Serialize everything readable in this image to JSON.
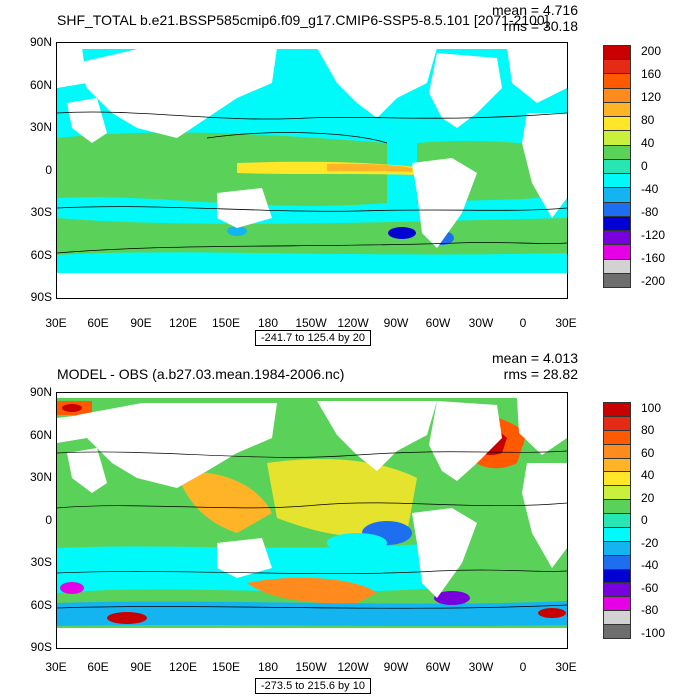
{
  "panels": [
    {
      "title": "SHF_TOTAL b.e21.BSSP585cmip6.f09_g17.CMIP6-SSP5-8.5.101 [2071-2100]",
      "mean": "mean = 4.716",
      "rms": "rms = 30.18",
      "range": "-241.7 to 125.4 by 20",
      "colorbar_labels": [
        "200",
        "160",
        "120",
        "80",
        "40",
        "0",
        "-40",
        "-80",
        "-120",
        "-160",
        "-200"
      ],
      "colors": [
        "#c80000",
        "#e52b16",
        "#ff5a00",
        "#ff8a1e",
        "#ffb428",
        "#ffe628",
        "#c8f03c",
        "#5ad25a",
        "#28e6b4",
        "#00fafa",
        "#14b4f0",
        "#1e6ef0",
        "#0000d2",
        "#7800dc",
        "#e600e6",
        "#d2d2d2",
        "#6e6e6e"
      ]
    },
    {
      "title": "MODEL - OBS (a.b27.03.mean.1984-2006.nc)",
      "mean": "mean = 4.013",
      "rms": "rms = 28.82",
      "range": "-273.5 to 215.6 by 10",
      "colorbar_labels": [
        "100",
        "80",
        "60",
        "40",
        "20",
        "0",
        "-20",
        "-40",
        "-60",
        "-80",
        "-100"
      ],
      "colors": [
        "#c80000",
        "#e52b16",
        "#ff5a00",
        "#ff8a1e",
        "#ffb428",
        "#ffe628",
        "#c8f03c",
        "#5ad25a",
        "#28e6b4",
        "#00fafa",
        "#14b4f0",
        "#1e6ef0",
        "#0000d2",
        "#7800dc",
        "#e600e6",
        "#d2d2d2",
        "#6e6e6e"
      ]
    }
  ],
  "axes": {
    "lat_labels": [
      "90N",
      "60N",
      "30N",
      "0",
      "30S",
      "60S",
      "90S"
    ],
    "lon_labels": [
      "30E",
      "60E",
      "90E",
      "120E",
      "150E",
      "180",
      "150W",
      "120W",
      "90W",
      "60W",
      "30W",
      "0",
      "30E"
    ]
  }
}
